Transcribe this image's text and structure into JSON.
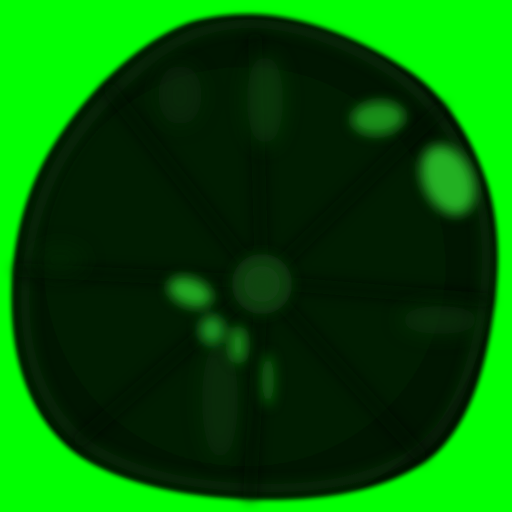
{
  "scene": {
    "subject": "dark-green-rounded-object-with-radial-ridges",
    "colors": {
      "background": "#00ff00",
      "object_body": "#031a03",
      "object_shadow": "#020c02",
      "highlight": "#19a519",
      "rim": "#0a3f0a"
    }
  }
}
